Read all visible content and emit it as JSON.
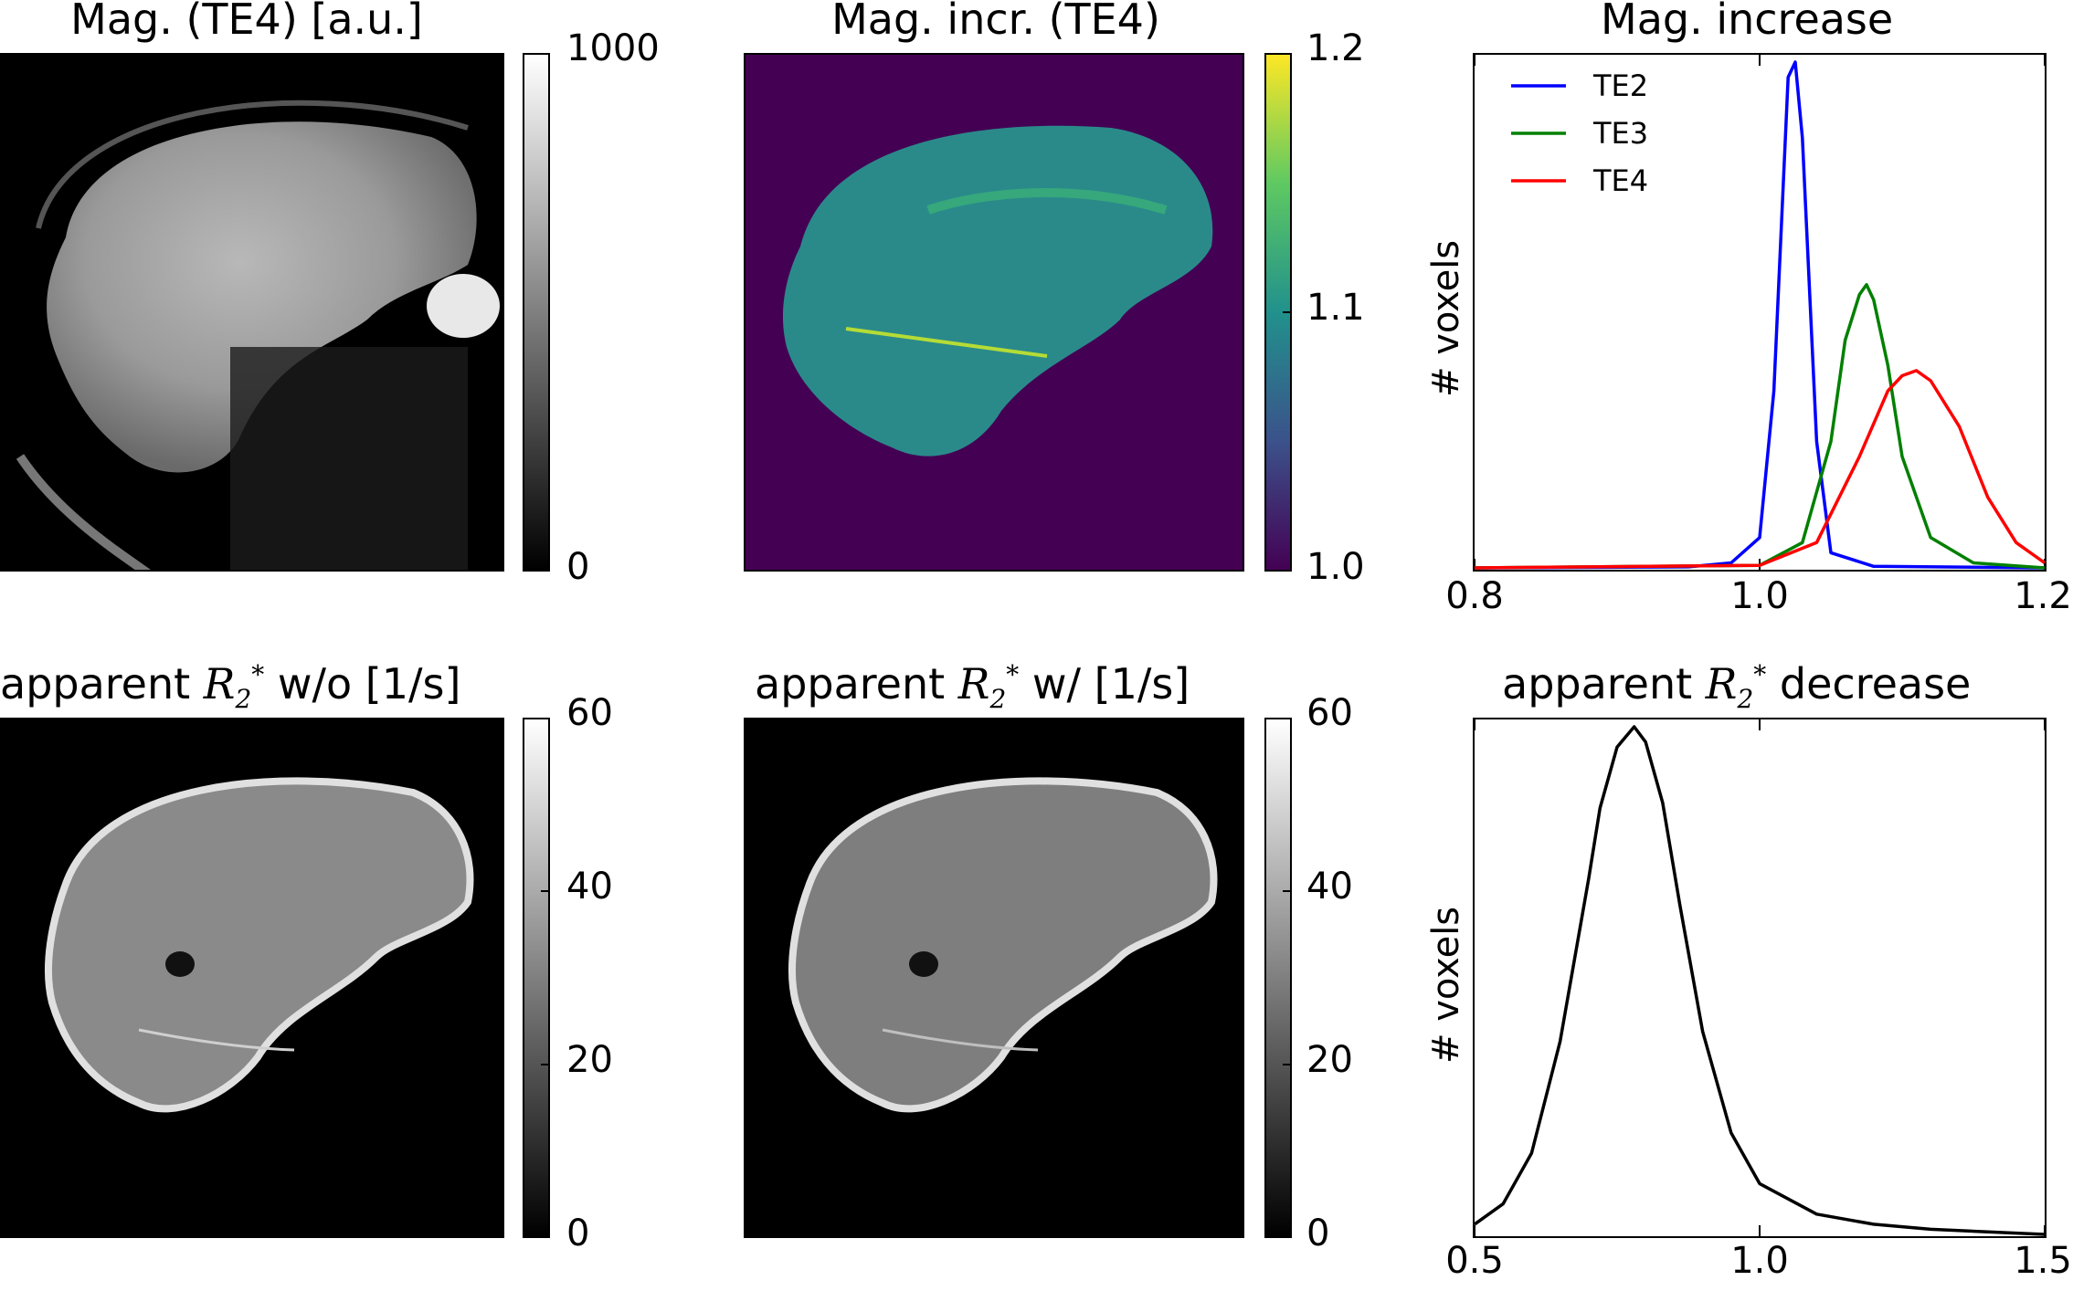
{
  "panels": {
    "p1": {
      "title": "Mag. (TE4) [a.u.]",
      "cbar_max": "1000",
      "cbar_min": "0"
    },
    "p2": {
      "title": "Mag. incr. (TE4)",
      "cbar_ticks": [
        "1.2",
        "1.1",
        "1.0"
      ]
    },
    "p3": {
      "title": "Mag. increase",
      "ylabel": "# voxels",
      "xticks": [
        "0.8",
        "1.0",
        "1.2"
      ]
    },
    "p4": {
      "title_pre": "apparent ",
      "title_math": "R",
      "title_sub": "2",
      "title_sup": "*",
      "title_post": " w/o [1/s]",
      "cbar_ticks": [
        "60",
        "40",
        "20",
        "0"
      ]
    },
    "p5": {
      "title_pre": "apparent ",
      "title_math": "R",
      "title_sub": "2",
      "title_sup": "*",
      "title_post": " w/ [1/s]",
      "cbar_ticks": [
        "60",
        "40",
        "20",
        "0"
      ]
    },
    "p6": {
      "title_pre": "apparent ",
      "title_math": "R",
      "title_sub": "2",
      "title_sup": "*",
      "title_post": " decrease",
      "ylabel": "# voxels",
      "xticks": [
        "0.5",
        "1.0",
        "1.5"
      ]
    }
  },
  "colors": {
    "TE2": "#0000ff",
    "TE3": "#008000",
    "TE4": "#ff0000",
    "viridis_low": "#440154",
    "viridis_mid": "#21918c",
    "viridis_high": "#fde725"
  },
  "chart_data": [
    {
      "type": "line",
      "title": "Mag. increase",
      "ylabel": "# voxels",
      "xlim": [
        0.8,
        1.2
      ],
      "legend": "top-left",
      "series": [
        {
          "name": "TE2",
          "x": [
            0.8,
            0.95,
            0.98,
            1.0,
            1.01,
            1.02,
            1.025,
            1.03,
            1.04,
            1.05,
            1.08,
            1.2
          ],
          "values": [
            0,
            0.002,
            0.01,
            0.06,
            0.35,
            0.97,
            1.0,
            0.85,
            0.25,
            0.03,
            0.003,
            0
          ]
        },
        {
          "name": "TE3",
          "x": [
            0.8,
            1.0,
            1.03,
            1.05,
            1.06,
            1.07,
            1.075,
            1.08,
            1.09,
            1.1,
            1.12,
            1.15,
            1.2
          ],
          "values": [
            0,
            0.005,
            0.05,
            0.25,
            0.45,
            0.54,
            0.56,
            0.53,
            0.4,
            0.22,
            0.06,
            0.01,
            0
          ]
        },
        {
          "name": "TE4",
          "x": [
            0.8,
            1.0,
            1.04,
            1.07,
            1.09,
            1.1,
            1.11,
            1.12,
            1.14,
            1.16,
            1.18,
            1.2
          ],
          "values": [
            0,
            0.005,
            0.05,
            0.22,
            0.35,
            0.38,
            0.39,
            0.37,
            0.28,
            0.14,
            0.05,
            0.01
          ]
        }
      ]
    },
    {
      "type": "line",
      "title": "apparent R2* decrease",
      "ylabel": "# voxels",
      "xlim": [
        0.5,
        1.5
      ],
      "series": [
        {
          "x": [
            0.5,
            0.55,
            0.6,
            0.65,
            0.7,
            0.72,
            0.75,
            0.78,
            0.8,
            0.83,
            0.86,
            0.9,
            0.95,
            1.0,
            1.1,
            1.2,
            1.3,
            1.5
          ],
          "values": [
            0.02,
            0.06,
            0.16,
            0.38,
            0.7,
            0.84,
            0.96,
            1.0,
            0.97,
            0.85,
            0.65,
            0.4,
            0.2,
            0.1,
            0.04,
            0.02,
            0.01,
            0.0
          ]
        }
      ]
    }
  ]
}
